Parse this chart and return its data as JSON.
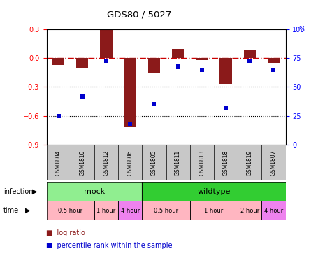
{
  "title": "GDS80 / 5027",
  "samples": [
    "GSM1804",
    "GSM1810",
    "GSM1812",
    "GSM1806",
    "GSM1805",
    "GSM1811",
    "GSM1813",
    "GSM1818",
    "GSM1819",
    "GSM1807"
  ],
  "log_ratio": [
    -0.07,
    -0.1,
    0.3,
    -0.72,
    -0.15,
    0.1,
    -0.02,
    -0.27,
    0.09,
    -0.05
  ],
  "percentile": [
    25,
    42,
    73,
    18,
    35,
    68,
    65,
    32,
    73,
    65
  ],
  "ylim_left": [
    -0.9,
    0.3
  ],
  "ylim_right": [
    0,
    100
  ],
  "yticks_left": [
    0.3,
    0.0,
    -0.3,
    -0.6,
    -0.9
  ],
  "yticks_right": [
    100,
    75,
    50,
    25,
    0
  ],
  "bar_color": "#8B1A1A",
  "dot_color": "#0000CD",
  "ref_line_color": "#CC0000",
  "infection_groups": [
    {
      "label": "mock",
      "start": 0,
      "end": 4,
      "color": "#90EE90"
    },
    {
      "label": "wildtype",
      "start": 4,
      "end": 10,
      "color": "#32CD32"
    }
  ],
  "time_groups": [
    {
      "label": "0.5 hour",
      "start": 0,
      "end": 2,
      "color": "#FFB6C1"
    },
    {
      "label": "1 hour",
      "start": 2,
      "end": 3,
      "color": "#FFB6C1"
    },
    {
      "label": "4 hour",
      "start": 3,
      "end": 4,
      "color": "#EE82EE"
    },
    {
      "label": "0.5 hour",
      "start": 4,
      "end": 6,
      "color": "#FFB6C1"
    },
    {
      "label": "1 hour",
      "start": 6,
      "end": 8,
      "color": "#FFB6C1"
    },
    {
      "label": "2 hour",
      "start": 8,
      "end": 9,
      "color": "#FFB6C1"
    },
    {
      "label": "4 hour",
      "start": 9,
      "end": 10,
      "color": "#EE82EE"
    }
  ],
  "legend_items": [
    {
      "label": "log ratio",
      "color": "#8B1A1A"
    },
    {
      "label": "percentile rank within the sample",
      "color": "#0000CD"
    }
  ],
  "fig_width": 4.75,
  "fig_height": 3.66,
  "dpi": 100
}
